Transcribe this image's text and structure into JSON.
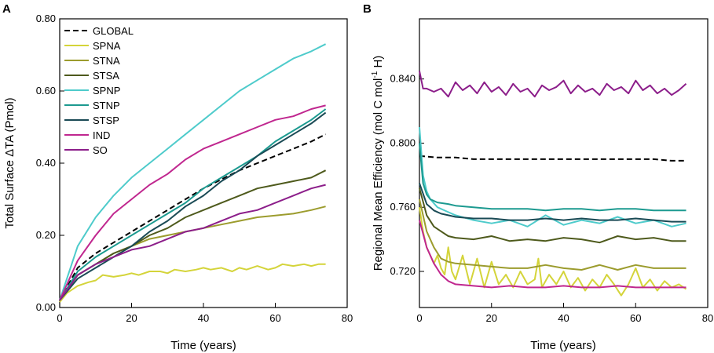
{
  "chart_data": [
    {
      "panel": "A",
      "type": "line",
      "xlabel": "Time (years)",
      "ylabel": "Total Surface ΔTA (Pmol)",
      "xlim": [
        0,
        80
      ],
      "ylim": [
        0.0,
        0.8
      ],
      "xticks": [
        0,
        20,
        40,
        60,
        80
      ],
      "xtick_labels": [
        "0",
        "20",
        "40",
        "60",
        "80"
      ],
      "yticks": [
        0.0,
        0.2,
        0.4,
        0.6,
        0.8
      ],
      "ytick_labels": [
        "0.00",
        "0.20",
        "0.40",
        "0.60",
        "0.80"
      ],
      "legend": "top-left",
      "series": [
        {
          "name": "GLOBAL",
          "color": "#000000",
          "dash": true,
          "x": [
            0,
            5,
            10,
            15,
            20,
            25,
            30,
            35,
            40,
            45,
            50,
            55,
            60,
            65,
            70,
            74
          ],
          "values": [
            0.02,
            0.11,
            0.15,
            0.18,
            0.21,
            0.24,
            0.27,
            0.3,
            0.33,
            0.355,
            0.38,
            0.4,
            0.42,
            0.44,
            0.46,
            0.48
          ]
        },
        {
          "name": "SPNA",
          "color": "#d4d43a",
          "dash": false,
          "x": [
            0,
            2,
            5,
            8,
            10,
            12,
            15,
            18,
            20,
            22,
            25,
            28,
            30,
            32,
            35,
            38,
            40,
            42,
            45,
            48,
            50,
            52,
            55,
            58,
            60,
            62,
            65,
            68,
            70,
            72,
            74
          ],
          "values": [
            0.015,
            0.04,
            0.06,
            0.07,
            0.075,
            0.09,
            0.085,
            0.09,
            0.095,
            0.09,
            0.1,
            0.1,
            0.095,
            0.105,
            0.1,
            0.105,
            0.11,
            0.105,
            0.11,
            0.1,
            0.11,
            0.105,
            0.115,
            0.105,
            0.11,
            0.12,
            0.115,
            0.12,
            0.115,
            0.12,
            0.12
          ]
        },
        {
          "name": "STNA",
          "color": "#9c9c2e",
          "dash": false,
          "x": [
            0,
            5,
            10,
            15,
            20,
            25,
            30,
            35,
            40,
            45,
            50,
            55,
            60,
            65,
            70,
            74
          ],
          "values": [
            0.02,
            0.09,
            0.12,
            0.15,
            0.17,
            0.19,
            0.2,
            0.21,
            0.22,
            0.23,
            0.24,
            0.25,
            0.255,
            0.26,
            0.27,
            0.28
          ]
        },
        {
          "name": "STSA",
          "color": "#4e5a1c",
          "dash": false,
          "x": [
            0,
            5,
            10,
            15,
            20,
            25,
            30,
            35,
            40,
            45,
            50,
            55,
            60,
            65,
            70,
            74
          ],
          "values": [
            0.02,
            0.09,
            0.12,
            0.15,
            0.17,
            0.2,
            0.22,
            0.25,
            0.27,
            0.29,
            0.31,
            0.33,
            0.34,
            0.35,
            0.36,
            0.38
          ]
        },
        {
          "name": "SPNP",
          "color": "#4ecbcb",
          "dash": false,
          "x": [
            0,
            5,
            10,
            15,
            20,
            25,
            30,
            35,
            40,
            45,
            50,
            55,
            60,
            65,
            70,
            74
          ],
          "values": [
            0.02,
            0.17,
            0.25,
            0.31,
            0.36,
            0.4,
            0.44,
            0.48,
            0.52,
            0.56,
            0.6,
            0.63,
            0.66,
            0.69,
            0.71,
            0.73
          ]
        },
        {
          "name": "STNP",
          "color": "#1c9a90",
          "dash": false,
          "x": [
            0,
            5,
            10,
            15,
            20,
            25,
            30,
            35,
            40,
            45,
            50,
            55,
            60,
            65,
            70,
            74
          ],
          "values": [
            0.02,
            0.1,
            0.14,
            0.17,
            0.2,
            0.23,
            0.26,
            0.29,
            0.33,
            0.36,
            0.39,
            0.42,
            0.46,
            0.49,
            0.52,
            0.55
          ]
        },
        {
          "name": "STSP",
          "color": "#1a4a55",
          "dash": false,
          "x": [
            0,
            5,
            10,
            15,
            20,
            25,
            30,
            35,
            40,
            45,
            50,
            55,
            60,
            65,
            70,
            74
          ],
          "values": [
            0.02,
            0.08,
            0.11,
            0.14,
            0.17,
            0.21,
            0.24,
            0.28,
            0.31,
            0.35,
            0.38,
            0.42,
            0.45,
            0.48,
            0.51,
            0.54
          ]
        },
        {
          "name": "IND",
          "color": "#c0278f",
          "dash": false,
          "x": [
            0,
            5,
            10,
            15,
            20,
            25,
            30,
            35,
            40,
            45,
            50,
            55,
            60,
            65,
            70,
            74
          ],
          "values": [
            0.02,
            0.13,
            0.2,
            0.26,
            0.3,
            0.34,
            0.37,
            0.41,
            0.44,
            0.46,
            0.48,
            0.5,
            0.52,
            0.53,
            0.55,
            0.56
          ]
        },
        {
          "name": "SO",
          "color": "#8c1e8a",
          "dash": false,
          "x": [
            0,
            5,
            10,
            15,
            20,
            25,
            30,
            35,
            40,
            45,
            50,
            55,
            60,
            65,
            70,
            74
          ],
          "values": [
            0.02,
            0.09,
            0.12,
            0.14,
            0.16,
            0.17,
            0.19,
            0.21,
            0.22,
            0.24,
            0.26,
            0.27,
            0.29,
            0.31,
            0.33,
            0.34
          ]
        }
      ]
    },
    {
      "panel": "B",
      "type": "line",
      "xlabel": "Time (years)",
      "ylabel": "Regional Mean Efficiency (mol C mol",
      "ylabel_sup": "-1",
      "ylabel_end": " H)",
      "xlim": [
        0,
        80
      ],
      "ylim": [
        0.6975,
        0.8775
      ],
      "xticks": [
        0,
        20,
        40,
        60,
        80
      ],
      "xtick_labels": [
        "0",
        "20",
        "40",
        "60",
        "80"
      ],
      "yticks": [
        0.72,
        0.76,
        0.8,
        0.84
      ],
      "ytick_labels": [
        "0.720",
        "0.760",
        "0.800",
        "0.840"
      ],
      "series": [
        {
          "name": "GLOBAL",
          "color": "#000000",
          "dash": true,
          "x": [
            0,
            5,
            10,
            15,
            20,
            25,
            30,
            35,
            40,
            45,
            50,
            55,
            60,
            65,
            70,
            74
          ],
          "values": [
            0.792,
            0.791,
            0.791,
            0.79,
            0.79,
            0.79,
            0.79,
            0.79,
            0.79,
            0.79,
            0.79,
            0.79,
            0.79,
            0.79,
            0.789,
            0.789
          ]
        },
        {
          "name": "SPNA",
          "color": "#d4d43a",
          "dash": false,
          "x": [
            0,
            1,
            2,
            3,
            4,
            5,
            6,
            7,
            8,
            9,
            10,
            12,
            14,
            16,
            18,
            20,
            22,
            24,
            26,
            28,
            30,
            32,
            33,
            34,
            36,
            38,
            40,
            42,
            44,
            46,
            48,
            50,
            52,
            54,
            56,
            58,
            60,
            62,
            64,
            66,
            68,
            70,
            72,
            74
          ],
          "values": [
            0.76,
            0.745,
            0.735,
            0.73,
            0.725,
            0.73,
            0.722,
            0.718,
            0.735,
            0.72,
            0.715,
            0.73,
            0.712,
            0.728,
            0.71,
            0.726,
            0.712,
            0.718,
            0.71,
            0.72,
            0.712,
            0.715,
            0.728,
            0.71,
            0.718,
            0.712,
            0.72,
            0.71,
            0.716,
            0.708,
            0.715,
            0.71,
            0.718,
            0.712,
            0.705,
            0.712,
            0.722,
            0.71,
            0.715,
            0.708,
            0.714,
            0.71,
            0.712,
            0.709
          ]
        },
        {
          "name": "STNA",
          "color": "#9c9c2e",
          "dash": false,
          "x": [
            0,
            2,
            4,
            6,
            8,
            10,
            15,
            20,
            25,
            30,
            35,
            40,
            45,
            50,
            55,
            60,
            65,
            70,
            74
          ],
          "values": [
            0.765,
            0.745,
            0.735,
            0.728,
            0.726,
            0.725,
            0.724,
            0.723,
            0.722,
            0.722,
            0.724,
            0.722,
            0.721,
            0.724,
            0.721,
            0.724,
            0.722,
            0.722,
            0.722
          ]
        },
        {
          "name": "STSA",
          "color": "#4e5a1c",
          "dash": false,
          "x": [
            0,
            2,
            4,
            6,
            8,
            10,
            15,
            20,
            25,
            30,
            35,
            40,
            45,
            50,
            55,
            60,
            65,
            70,
            74
          ],
          "values": [
            0.772,
            0.755,
            0.748,
            0.745,
            0.742,
            0.741,
            0.74,
            0.742,
            0.739,
            0.74,
            0.739,
            0.741,
            0.74,
            0.738,
            0.742,
            0.74,
            0.741,
            0.739,
            0.739
          ]
        },
        {
          "name": "SPNP",
          "color": "#4ecbcb",
          "dash": false,
          "x": [
            0,
            1,
            2,
            3,
            5,
            8,
            10,
            15,
            20,
            25,
            30,
            35,
            40,
            45,
            50,
            55,
            60,
            65,
            70,
            74
          ],
          "values": [
            0.81,
            0.78,
            0.77,
            0.765,
            0.76,
            0.757,
            0.755,
            0.752,
            0.75,
            0.752,
            0.748,
            0.755,
            0.749,
            0.752,
            0.75,
            0.754,
            0.75,
            0.752,
            0.748,
            0.75
          ]
        },
        {
          "name": "STNP",
          "color": "#1c9a90",
          "dash": false,
          "x": [
            0,
            1,
            2,
            3,
            5,
            8,
            10,
            15,
            20,
            25,
            30,
            35,
            40,
            45,
            50,
            55,
            60,
            65,
            70,
            74
          ],
          "values": [
            0.8,
            0.775,
            0.768,
            0.765,
            0.763,
            0.762,
            0.761,
            0.76,
            0.759,
            0.759,
            0.759,
            0.758,
            0.759,
            0.759,
            0.758,
            0.759,
            0.759,
            0.758,
            0.758,
            0.758
          ]
        },
        {
          "name": "STSP",
          "color": "#1a4a55",
          "dash": false,
          "x": [
            0,
            2,
            4,
            6,
            8,
            10,
            15,
            20,
            25,
            30,
            35,
            40,
            45,
            50,
            55,
            60,
            65,
            70,
            74
          ],
          "values": [
            0.775,
            0.762,
            0.758,
            0.756,
            0.755,
            0.754,
            0.753,
            0.753,
            0.752,
            0.752,
            0.753,
            0.752,
            0.753,
            0.752,
            0.752,
            0.753,
            0.752,
            0.751,
            0.751
          ]
        },
        {
          "name": "IND",
          "color": "#c0278f",
          "dash": false,
          "x": [
            0,
            2,
            4,
            6,
            8,
            10,
            15,
            20,
            25,
            30,
            35,
            40,
            45,
            50,
            55,
            60,
            65,
            70,
            74
          ],
          "values": [
            0.752,
            0.735,
            0.725,
            0.718,
            0.714,
            0.712,
            0.711,
            0.71,
            0.711,
            0.71,
            0.71,
            0.711,
            0.71,
            0.71,
            0.711,
            0.71,
            0.71,
            0.71,
            0.71
          ]
        },
        {
          "name": "SO",
          "color": "#8c1e8a",
          "dash": false,
          "x": [
            0,
            1,
            2,
            4,
            6,
            8,
            10,
            12,
            14,
            16,
            18,
            20,
            22,
            24,
            26,
            28,
            30,
            32,
            34,
            36,
            38,
            40,
            42,
            44,
            46,
            48,
            50,
            52,
            54,
            56,
            58,
            60,
            62,
            64,
            66,
            68,
            70,
            72,
            74
          ],
          "values": [
            0.845,
            0.834,
            0.834,
            0.832,
            0.834,
            0.829,
            0.838,
            0.833,
            0.836,
            0.831,
            0.838,
            0.832,
            0.835,
            0.83,
            0.837,
            0.832,
            0.834,
            0.829,
            0.836,
            0.833,
            0.835,
            0.839,
            0.831,
            0.836,
            0.832,
            0.834,
            0.83,
            0.837,
            0.833,
            0.835,
            0.831,
            0.839,
            0.833,
            0.836,
            0.831,
            0.834,
            0.83,
            0.833,
            0.837
          ]
        }
      ]
    }
  ]
}
